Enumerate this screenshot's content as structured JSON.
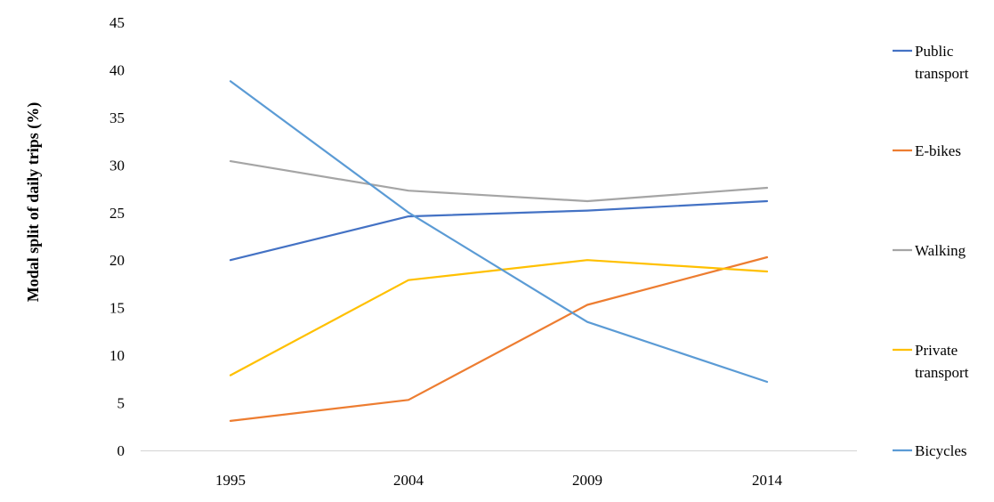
{
  "chart_data": {
    "type": "line",
    "title": "",
    "xlabel": "",
    "ylabel": "Modal split of daily trips (%)",
    "categories": [
      "1995",
      "2004",
      "2009",
      "2014"
    ],
    "ylim": [
      0,
      45
    ],
    "yticks": [
      0,
      5,
      10,
      15,
      20,
      25,
      30,
      35,
      40,
      45
    ],
    "grid": false,
    "legend_position": "right",
    "series": [
      {
        "name": "Public transport",
        "legend_lines": [
          "Public",
          "transport"
        ],
        "color": "#4472C4",
        "values": [
          20.0,
          24.6,
          25.2,
          26.2
        ]
      },
      {
        "name": "E-bikes",
        "legend_lines": [
          "E-bikes"
        ],
        "color": "#ED7D31",
        "values": [
          3.1,
          5.3,
          15.3,
          20.3
        ]
      },
      {
        "name": "Walking",
        "legend_lines": [
          "Walking"
        ],
        "color": "#A5A5A5",
        "values": [
          30.4,
          27.3,
          26.2,
          27.6
        ]
      },
      {
        "name": "Private transport",
        "legend_lines": [
          "Private",
          "transport"
        ],
        "color": "#FFC000",
        "values": [
          7.9,
          17.9,
          20.0,
          18.8
        ]
      },
      {
        "name": "Bicycles",
        "legend_lines": [
          "Bicycles"
        ],
        "color": "#5B9BD5",
        "values": [
          38.8,
          25.0,
          13.5,
          7.2
        ]
      }
    ]
  }
}
